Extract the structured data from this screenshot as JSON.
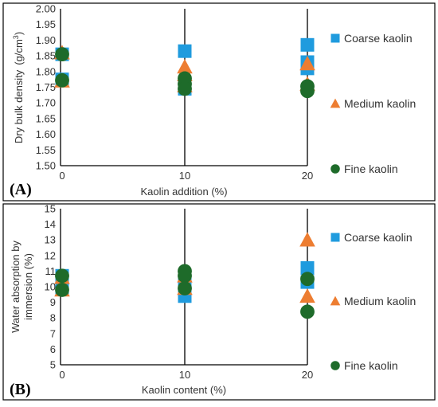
{
  "chart_data": [
    {
      "type": "scatter",
      "panel_label": "(A)",
      "xlabel": "Kaolin addition (%)",
      "ylabel": "Dry bulk density",
      "ylabel_unit_prefix": "(g/cm",
      "ylabel_unit_sup": "3",
      "ylabel_unit_suffix": ")",
      "ylim": [
        1.5,
        2.0
      ],
      "yticks": [
        "1.50",
        "1.55",
        "1.60",
        "1.65",
        "1.70",
        "1.75",
        "1.80",
        "1.85",
        "1.90",
        "1.95",
        "2.00"
      ],
      "xticks": [
        0,
        10,
        20
      ],
      "grid": "vertical lines at x = 10 and x = 20",
      "legend_position": "right",
      "series": [
        {
          "name": "Coarse kaolin",
          "marker": "square",
          "color": "#1F9BDE",
          "points": [
            [
              0,
              1.855
            ],
            [
              0,
              1.775
            ],
            [
              10,
              1.865
            ],
            [
              10,
              1.745
            ],
            [
              20,
              1.885
            ],
            [
              20,
              1.83
            ],
            [
              20,
              1.81
            ]
          ]
        },
        {
          "name": "Medium kaolin",
          "marker": "triangle",
          "color": "#ED7D31",
          "points": [
            [
              0,
              1.86
            ],
            [
              0,
              1.77
            ],
            [
              10,
              1.815
            ],
            [
              10,
              1.79
            ],
            [
              10,
              1.755
            ],
            [
              20,
              1.825
            ],
            [
              20,
              1.76
            ]
          ]
        },
        {
          "name": "Fine kaolin",
          "marker": "circle",
          "color": "#1E6B2A",
          "points": [
            [
              0,
              1.855
            ],
            [
              0,
              1.772
            ],
            [
              10,
              1.778
            ],
            [
              10,
              1.76
            ],
            [
              10,
              1.745
            ],
            [
              20,
              1.753
            ],
            [
              20,
              1.738
            ]
          ]
        }
      ]
    },
    {
      "type": "scatter",
      "panel_label": "(B)",
      "xlabel": "Kaolin content (%)",
      "ylabel_line1": "Water absorption by",
      "ylabel_line2": "immersion (%)",
      "ylim": [
        5,
        15
      ],
      "yticks": [
        "5",
        "6",
        "7",
        "8",
        "9",
        "10",
        "11",
        "12",
        "13",
        "14",
        "15"
      ],
      "xticks": [
        0,
        10,
        20
      ],
      "grid": "vertical lines at x = 10 and x = 20",
      "legend_position": "right",
      "series": [
        {
          "name": "Coarse kaolin",
          "marker": "square",
          "color": "#1F9BDE",
          "points": [
            [
              0,
              10.7
            ],
            [
              0,
              9.9
            ],
            [
              10,
              9.4
            ],
            [
              10,
              10.3
            ],
            [
              20,
              11.2
            ],
            [
              20,
              10.3
            ]
          ]
        },
        {
          "name": "Medium kaolin",
          "marker": "triangle",
          "color": "#ED7D31",
          "points": [
            [
              0,
              10.6
            ],
            [
              0,
              9.8
            ],
            [
              10,
              9.9
            ],
            [
              10,
              10.7
            ],
            [
              20,
              13.0
            ],
            [
              20,
              9.4
            ]
          ]
        },
        {
          "name": "Fine kaolin",
          "marker": "circle",
          "color": "#1E6B2A",
          "points": [
            [
              0,
              10.7
            ],
            [
              0,
              9.8
            ],
            [
              10,
              11.0
            ],
            [
              10,
              10.7
            ],
            [
              10,
              9.9
            ],
            [
              20,
              10.5
            ],
            [
              20,
              8.4
            ]
          ]
        }
      ]
    }
  ]
}
